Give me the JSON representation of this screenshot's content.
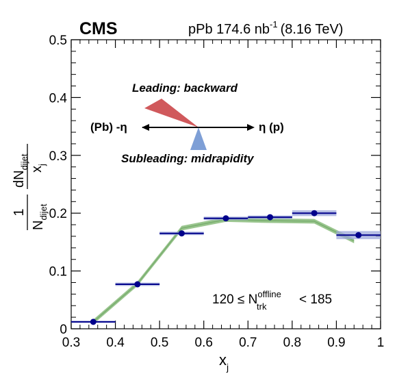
{
  "header": {
    "experiment": "CMS",
    "system_label": "pPb 174.6 nb",
    "lumi_exponent": "-1",
    "energy_label": "(8.16 TeV)"
  },
  "cartoon": {
    "leading_label": "Leading: backward",
    "subleading_label": "Subleading: midrapidity",
    "left_label": "(Pb) -η",
    "right_label": "η (p)",
    "leading_color": "#d0595c",
    "subleading_color": "#7e9fd6"
  },
  "selection": {
    "prefix": "120 ≤ N",
    "sup": "offline",
    "sub": "trk",
    "suffix": "< 185"
  },
  "y_axis_label": {
    "one": "1",
    "n_main": "N",
    "n_sub": "dijet",
    "dn_main": "dN",
    "dn_sub": "dijet",
    "x_main": "x",
    "x_sub": "j"
  },
  "x_axis_label": {
    "main": "x",
    "sub": "j"
  },
  "chart_data": {
    "type": "scatter",
    "x_range": [
      0.3,
      1.0
    ],
    "ylim": [
      0,
      0.5
    ],
    "x_ticks": [
      "0.3",
      "0.4",
      "0.5",
      "0.6",
      "0.7",
      "0.8",
      "0.9",
      "1"
    ],
    "y_ticks": [
      "0",
      "0.1",
      "0.2",
      "0.3",
      "0.4",
      "0.5"
    ],
    "series": [
      {
        "kind": "data",
        "color": "#00008b",
        "points": [
          {
            "x": 0.35,
            "y": 0.012,
            "xerr": 0.05,
            "yerr": 0.001
          },
          {
            "x": 0.45,
            "y": 0.077,
            "xerr": 0.05,
            "yerr": 0.003
          },
          {
            "x": 0.55,
            "y": 0.165,
            "xerr": 0.05,
            "yerr": 0.003
          },
          {
            "x": 0.65,
            "y": 0.191,
            "xerr": 0.05,
            "yerr": 0.003
          },
          {
            "x": 0.75,
            "y": 0.193,
            "xerr": 0.05,
            "yerr": 0.003
          },
          {
            "x": 0.85,
            "y": 0.2,
            "xerr": 0.05,
            "yerr": 0.005
          },
          {
            "x": 0.95,
            "y": 0.162,
            "xerr": 0.05,
            "yerr": 0.007
          }
        ]
      },
      {
        "kind": "band",
        "color": "#8fbf82",
        "x": [
          0.35,
          0.45,
          0.55,
          0.65,
          0.75,
          0.85,
          0.94
        ],
        "y": [
          0.012,
          0.078,
          0.174,
          0.189,
          0.187,
          0.186,
          0.152
        ],
        "halfwidth": 0.004
      }
    ]
  }
}
